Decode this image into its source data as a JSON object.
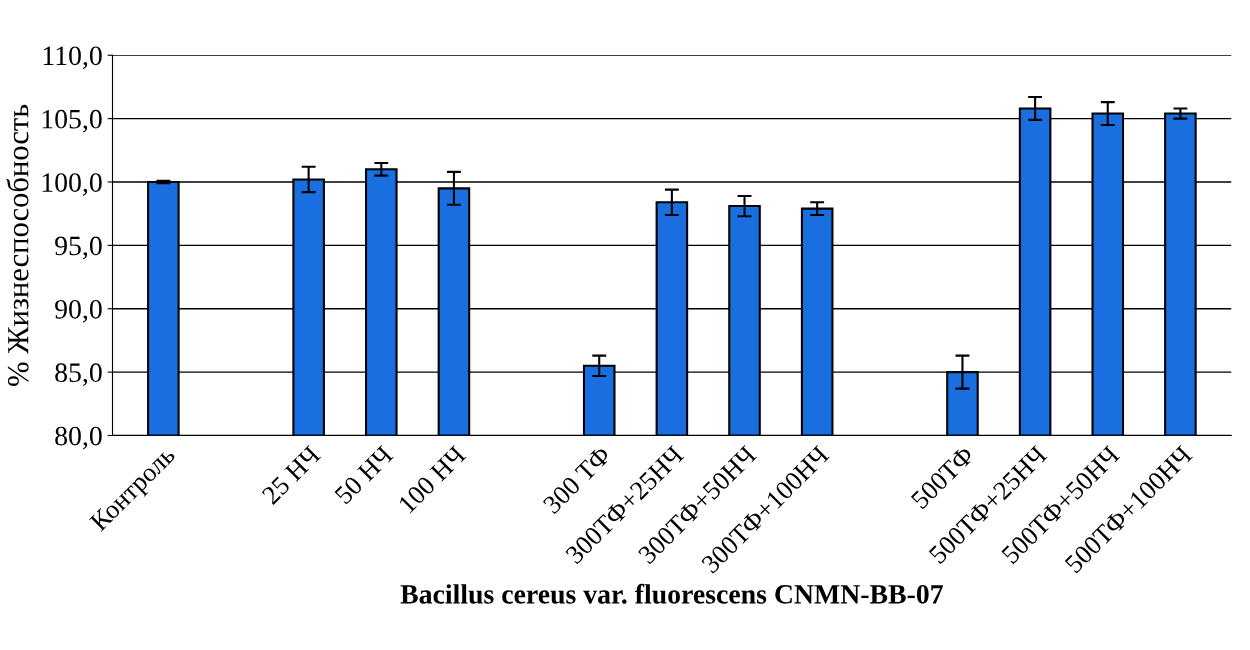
{
  "chart_data": {
    "type": "bar",
    "xlabel": "Bacillus cereus var. fluorescens CNMN-BB-07",
    "ylabel": "% Жизнеспособность",
    "categories": [
      "Контроль",
      null,
      "25 НЧ",
      "50 НЧ",
      "100 НЧ",
      null,
      "300 ТФ",
      "300ТФ+25НЧ",
      "300ТФ+50НЧ",
      "300ТФ+100НЧ",
      null,
      "500ТФ",
      "500ТФ+25НЧ",
      "500ТФ+50НЧ",
      "500ТФ+100НЧ"
    ],
    "values": [
      100.0,
      null,
      100.2,
      101.0,
      99.5,
      null,
      85.5,
      98.4,
      98.1,
      97.9,
      null,
      85.0,
      105.8,
      105.4,
      105.4
    ],
    "errors": [
      0.1,
      null,
      1.0,
      0.5,
      1.3,
      null,
      0.8,
      1.0,
      0.8,
      0.5,
      null,
      1.3,
      0.9,
      0.9,
      0.4
    ],
    "color": "#1a6fe0",
    "ylim": [
      80,
      110
    ],
    "yticks": [
      {
        "value": 80,
        "label": "80,0"
      },
      {
        "value": 85,
        "label": "85,0"
      },
      {
        "value": 90,
        "label": "90,0"
      },
      {
        "value": 95,
        "label": "95,0"
      },
      {
        "value": 100,
        "label": "100,0"
      },
      {
        "value": 105,
        "label": "105,0"
      },
      {
        "value": 110,
        "label": "110,0"
      }
    ],
    "grid": "y"
  }
}
